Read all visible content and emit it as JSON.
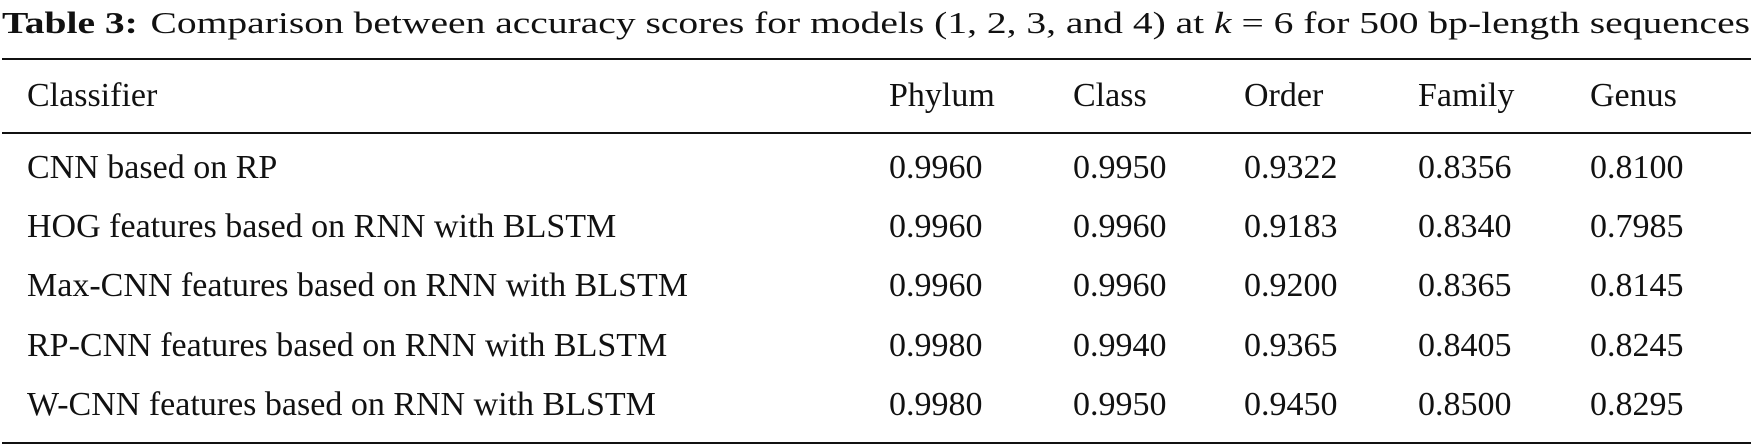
{
  "caption": {
    "label": "Table 3:",
    "text_before": "Comparison between accuracy scores for models (1, 2, 3, and 4) at ",
    "variable": "k",
    "text_after": " = 6 for 500 bp-length sequences"
  },
  "table": {
    "header": [
      "Classifier",
      "Phylum",
      "Class",
      "Order",
      "Family",
      "Genus"
    ],
    "rows": [
      [
        "CNN based on RP",
        "0.9960",
        "0.9950",
        "0.9322",
        "0.8356",
        "0.8100"
      ],
      [
        "HOG features based on RNN with BLSTM",
        "0.9960",
        "0.9960",
        "0.9183",
        "0.8340",
        "0.7985"
      ],
      [
        "Max-CNN features based on RNN with BLSTM",
        "0.9960",
        "0.9960",
        "0.9200",
        "0.8365",
        "0.8145"
      ],
      [
        "RP-CNN features based on RNN with BLSTM",
        "0.9980",
        "0.9940",
        "0.9365",
        "0.8405",
        "0.8245"
      ],
      [
        "W-CNN features based on RNN with BLSTM",
        "0.9980",
        "0.9950",
        "0.9450",
        "0.8500",
        "0.8295"
      ]
    ]
  }
}
